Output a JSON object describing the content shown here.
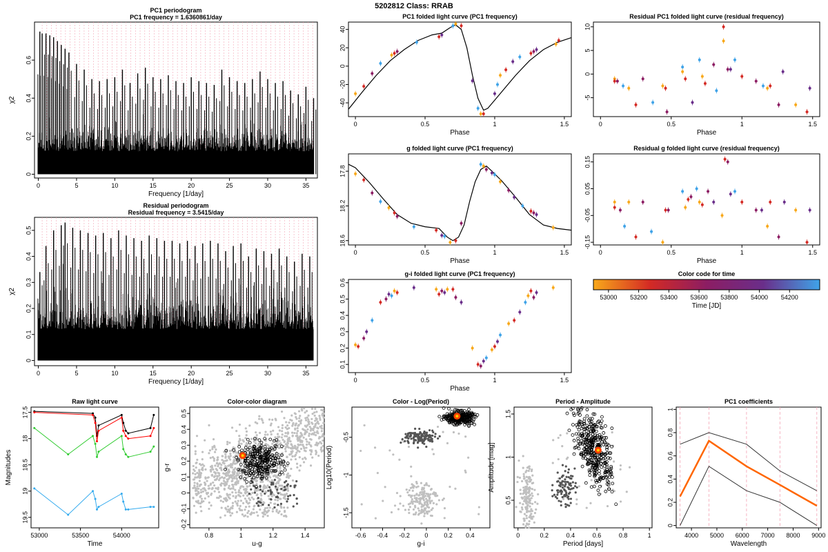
{
  "page_title": "5202812    Class: RRAB",
  "chart_data": [
    {
      "id": "pc1-periodogram",
      "type": "line",
      "title": "PC1 periodogram",
      "subtitle": "PC1 frequency = 1.6360861/day",
      "xlabel": "Frequency [1/day]",
      "ylabel": "χ2",
      "xlim": [
        -0.5,
        36.5
      ],
      "ylim": [
        -0.02,
        0.8
      ],
      "xticks": [
        0,
        5,
        10,
        15,
        20,
        25,
        30,
        35
      ],
      "yticks": [
        0.0,
        0.2,
        0.4,
        0.6
      ],
      "series": [
        {
          "name": "peaks",
          "x": [
            0.2,
            0.5,
            1.0,
            1.5,
            2.0,
            2.5,
            3.0,
            3.5,
            4.0,
            5.0,
            6.0,
            7.0,
            8.0,
            9.0,
            10.0,
            11.0,
            12.0,
            13.0,
            14.0,
            15.0,
            16.0,
            17.0,
            18.0,
            19.0,
            20.0,
            21.0,
            22.0,
            23.0,
            24.0,
            25.0,
            26.0,
            27.0,
            28.0,
            29.0,
            30.0,
            31.0,
            32.0,
            33.0,
            34.0,
            35.0,
            36.0
          ],
          "values": [
            0.75,
            0.74,
            0.74,
            0.73,
            0.72,
            0.7,
            0.68,
            0.66,
            0.64,
            0.58,
            0.55,
            0.5,
            0.49,
            0.5,
            0.51,
            0.55,
            0.48,
            0.53,
            0.56,
            0.51,
            0.5,
            0.52,
            0.49,
            0.48,
            0.51,
            0.49,
            0.48,
            0.47,
            0.55,
            0.51,
            0.49,
            0.48,
            0.5,
            0.54,
            0.5,
            0.48,
            0.49,
            0.44,
            0.42,
            0.46,
            0.4
          ]
        }
      ]
    },
    {
      "id": "residual-periodogram",
      "type": "line",
      "title": "Residual periodogram",
      "subtitle": "Residual frequency = 3.5415/day",
      "xlabel": "Frequency [1/day]",
      "ylabel": "χ2",
      "xlim": [
        -0.5,
        36.5
      ],
      "ylim": [
        -0.02,
        0.55
      ],
      "xticks": [
        0,
        5,
        10,
        15,
        20,
        25,
        30,
        35
      ],
      "yticks": [
        0.0,
        0.1,
        0.2,
        0.3,
        0.4,
        0.5
      ],
      "series": [
        {
          "name": "peaks",
          "x": [
            0.2,
            1.0,
            2.0,
            3.0,
            3.5,
            4.5,
            5.5,
            6.5,
            7.5,
            8.5,
            9.5,
            10.5,
            11.5,
            12.5,
            13.5,
            14.5,
            15.5,
            16.5,
            17.5,
            18.5,
            19.5,
            20.5,
            21.5,
            22.5,
            23.5,
            24.5,
            25.5,
            26.5,
            27.5,
            28.5,
            29.5,
            30.5,
            31.5,
            32.5,
            33.5,
            34.5,
            35.5
          ],
          "values": [
            0.34,
            0.44,
            0.5,
            0.52,
            0.53,
            0.51,
            0.5,
            0.49,
            0.48,
            0.49,
            0.47,
            0.5,
            0.48,
            0.47,
            0.46,
            0.48,
            0.47,
            0.46,
            0.46,
            0.45,
            0.46,
            0.44,
            0.45,
            0.46,
            0.45,
            0.42,
            0.44,
            0.45,
            0.4,
            0.43,
            0.42,
            0.41,
            0.43,
            0.4,
            0.38,
            0.41,
            0.4
          ]
        }
      ]
    },
    {
      "id": "pc1-folded",
      "type": "scatter",
      "title": "PC1 folded light curve (PC1 frequency)",
      "xlabel": "Phase",
      "ylabel": "",
      "xlim": [
        -0.05,
        1.55
      ],
      "ylim": [
        -55,
        48
      ],
      "xticks": [
        0.0,
        0.5,
        1.0,
        1.5
      ],
      "yticks": [
        -40,
        -20,
        0,
        20,
        40
      ],
      "curve": {
        "x": [
          -0.05,
          0.05,
          0.15,
          0.25,
          0.35,
          0.45,
          0.55,
          0.62,
          0.68,
          0.72,
          0.76,
          0.8,
          0.84,
          0.88,
          0.92,
          0.95,
          1.0,
          1.05,
          1.15,
          1.25,
          1.35,
          1.45,
          1.55
        ],
        "y": [
          -47,
          -28,
          -10,
          6,
          18,
          28,
          34,
          36,
          42,
          45,
          40,
          20,
          -10,
          -35,
          -48,
          -46,
          -37,
          -28,
          -10,
          6,
          18,
          26,
          31
        ]
      },
      "points": {
        "x": [
          0.0,
          0.06,
          0.12,
          0.18,
          0.26,
          0.28,
          0.3,
          0.44,
          0.6,
          0.62,
          0.7,
          0.72,
          0.76,
          0.84,
          0.88,
          0.9,
          0.92,
          1.0,
          1.02,
          1.04,
          1.08,
          1.13,
          1.18,
          1.26,
          1.28,
          1.3,
          1.44,
          1.46
        ],
        "y": [
          -30,
          -22,
          -8,
          3,
          12,
          14,
          16,
          26,
          32,
          34,
          44,
          46,
          44,
          -16,
          -46,
          -52,
          -52,
          -30,
          -20,
          -10,
          -4,
          5,
          10,
          14,
          16,
          18,
          24,
          28
        ]
      }
    },
    {
      "id": "residual-pc1-folded",
      "type": "scatter",
      "title": "Residual PC1 folded light curve (residual frequency)",
      "xlabel": "Phase",
      "ylabel": "",
      "xlim": [
        -0.05,
        1.55
      ],
      "ylim": [
        -9,
        11
      ],
      "xticks": [
        0.0,
        0.5,
        1.0,
        1.5
      ],
      "yticks": [
        -5,
        0,
        5,
        10
      ],
      "points": {
        "x": [
          0.1,
          0.1,
          0.12,
          0.16,
          0.2,
          0.25,
          0.3,
          0.37,
          0.44,
          0.46,
          0.47,
          0.58,
          0.58,
          0.6,
          0.65,
          0.7,
          0.72,
          0.74,
          0.8,
          0.82,
          0.87,
          0.87,
          0.9,
          0.92,
          0.95,
          1.0,
          1.1,
          1.15,
          1.18,
          1.2,
          1.26,
          1.29,
          1.38,
          1.46,
          1.48
        ],
        "y": [
          -1,
          -1.5,
          -1.5,
          -2.5,
          -3,
          -6.5,
          -1,
          -6,
          -2.5,
          -3,
          -8,
          1.5,
          0.5,
          -1,
          -6,
          3,
          -0.5,
          -2,
          2,
          -3.5,
          7,
          10,
          1,
          1,
          3,
          -0.5,
          -1.5,
          -2.5,
          -3,
          -2.5,
          -6.5,
          0.5,
          -6.5,
          -8,
          -3
        ]
      }
    },
    {
      "id": "g-folded",
      "type": "scatter",
      "title": "g folded light curve (PC1 frequency)",
      "xlabel": "Phase",
      "ylabel": "",
      "xlim": [
        -0.05,
        1.55
      ],
      "ylim": [
        18.65,
        17.6
      ],
      "xticks": [
        0.0,
        0.5,
        1.0,
        1.5
      ],
      "yticks": [
        17.8,
        18.2,
        18.6
      ],
      "curve": {
        "x": [
          -0.05,
          0.0,
          0.1,
          0.2,
          0.3,
          0.4,
          0.5,
          0.6,
          0.66,
          0.7,
          0.74,
          0.78,
          0.82,
          0.86,
          0.9,
          0.94,
          0.98,
          1.05,
          1.15,
          1.25,
          1.35,
          1.45,
          1.55
        ],
        "y": [
          17.72,
          17.76,
          17.93,
          18.12,
          18.3,
          18.4,
          18.44,
          18.46,
          18.56,
          18.6,
          18.56,
          18.42,
          18.15,
          17.92,
          17.78,
          17.74,
          17.8,
          17.91,
          18.1,
          18.3,
          18.42,
          18.46,
          18.48
        ]
      },
      "points": {
        "x": [
          0.0,
          0.06,
          0.12,
          0.18,
          0.24,
          0.28,
          0.3,
          0.42,
          0.58,
          0.62,
          0.64,
          0.68,
          0.72,
          0.76,
          0.9,
          0.92,
          0.94,
          0.98,
          1.0,
          1.04,
          1.1,
          1.14,
          1.2,
          1.26,
          1.28,
          1.3,
          1.42
        ],
        "y": [
          17.83,
          17.9,
          18.05,
          18.15,
          18.22,
          18.28,
          18.32,
          18.44,
          18.48,
          18.54,
          18.55,
          18.62,
          18.6,
          18.4,
          17.72,
          17.74,
          17.78,
          17.82,
          17.84,
          17.92,
          18.02,
          18.1,
          18.2,
          18.26,
          18.28,
          18.3,
          18.45
        ]
      }
    },
    {
      "id": "residual-g-folded",
      "type": "scatter",
      "title": "Residual g folded light curve (residual frequency)",
      "xlabel": "Phase",
      "ylabel": "",
      "xlim": [
        -0.05,
        1.55
      ],
      "ylim": [
        -0.16,
        0.18
      ],
      "xticks": [
        0.0,
        0.5,
        1.0,
        1.5
      ],
      "yticks": [
        -0.15,
        -0.05,
        0.05,
        0.15
      ],
      "points": {
        "x": [
          0.1,
          0.1,
          0.14,
          0.17,
          0.2,
          0.25,
          0.3,
          0.36,
          0.44,
          0.46,
          0.48,
          0.58,
          0.6,
          0.62,
          0.64,
          0.68,
          0.7,
          0.72,
          0.76,
          0.8,
          0.86,
          0.88,
          0.9,
          0.92,
          0.95,
          1.0,
          1.1,
          1.14,
          1.18,
          1.2,
          1.26,
          1.3,
          1.38,
          1.46,
          1.48
        ],
        "y": [
          0.0,
          -0.02,
          -0.03,
          -0.09,
          0.0,
          -0.13,
          0.0,
          -0.11,
          -0.15,
          -0.03,
          -0.03,
          0.04,
          -0.02,
          0.01,
          0.02,
          0.05,
          0.0,
          -0.01,
          0.04,
          0.0,
          -0.05,
          0.16,
          0.15,
          0.03,
          0.04,
          0.0,
          -0.03,
          -0.03,
          -0.09,
          0.0,
          -0.13,
          0.0,
          -0.03,
          -0.15,
          -0.03
        ]
      }
    },
    {
      "id": "gi-folded",
      "type": "scatter",
      "title": "g-i folded light curve (PC1 frequency)",
      "xlabel": "Phase",
      "ylabel": "",
      "xlim": [
        -0.05,
        1.55
      ],
      "ylim": [
        0.05,
        0.62
      ],
      "xticks": [
        0.0,
        0.5,
        1.0,
        1.5
      ],
      "yticks": [
        0.1,
        0.2,
        0.3,
        0.4,
        0.5,
        0.6
      ],
      "points": {
        "x": [
          0.0,
          0.02,
          0.06,
          0.08,
          0.12,
          0.18,
          0.22,
          0.24,
          0.26,
          0.28,
          0.3,
          0.42,
          0.58,
          0.6,
          0.62,
          0.64,
          0.66,
          0.7,
          0.72,
          0.76,
          0.84,
          0.88,
          0.9,
          0.92,
          0.94,
          0.98,
          1.0,
          1.02,
          1.04,
          1.1,
          1.14,
          1.18,
          1.22,
          1.24,
          1.26,
          1.28,
          1.3,
          1.42
        ],
        "y": [
          0.22,
          0.21,
          0.26,
          0.3,
          0.37,
          0.48,
          0.5,
          0.53,
          0.52,
          0.55,
          0.54,
          0.57,
          0.56,
          0.53,
          0.55,
          0.54,
          0.56,
          0.56,
          0.51,
          0.48,
          0.2,
          0.1,
          0.09,
          0.12,
          0.14,
          0.19,
          0.21,
          0.24,
          0.28,
          0.35,
          0.37,
          0.42,
          0.48,
          0.52,
          0.55,
          0.51,
          0.54,
          0.57
        ]
      }
    },
    {
      "id": "color-code",
      "type": "heatmap",
      "title": "Color code for time",
      "xlabel": "Time [JD]",
      "xlim": [
        52900,
        54400
      ],
      "xticks": [
        53000,
        53200,
        53400,
        53600,
        53800,
        54000,
        54200
      ],
      "colors": [
        "#f8a81a",
        "#d42a24",
        "#8c1d63",
        "#6a2e8a",
        "#3fa3e8"
      ]
    },
    {
      "id": "raw-light-curve",
      "type": "line",
      "title": "Raw light curve",
      "xlabel": "Time",
      "ylabel": "Magnitudes",
      "xlim": [
        52900,
        54450
      ],
      "ylim": [
        19.7,
        17.4
      ],
      "xticks": [
        53000,
        53500,
        54000
      ],
      "yticks": [
        17.5,
        18.0,
        18.5,
        19.0,
        19.5
      ],
      "series": [
        {
          "name": "u",
          "color": "#000000",
          "x": [
            52940,
            53650,
            53680,
            53700,
            53720,
            54000,
            54020,
            54050,
            54080,
            54350,
            54390
          ],
          "values": [
            17.48,
            17.52,
            17.6,
            17.95,
            17.75,
            17.55,
            17.7,
            17.85,
            17.9,
            17.8,
            17.55
          ]
        },
        {
          "name": "g",
          "color": "#ff0000",
          "x": [
            52940,
            53650,
            53680,
            53700,
            53720,
            54000,
            54020,
            54050,
            54080,
            54350,
            54390
          ],
          "values": [
            17.5,
            17.55,
            17.7,
            18.05,
            17.85,
            17.6,
            17.85,
            17.95,
            18.0,
            17.95,
            17.8
          ]
        },
        {
          "name": "r",
          "color": "#33cc33",
          "x": [
            52940,
            53350,
            53650,
            53680,
            53700,
            53720,
            54000,
            54020,
            54050,
            54080,
            54350,
            54390
          ],
          "values": [
            17.8,
            18.3,
            17.95,
            18.1,
            18.35,
            18.25,
            17.95,
            18.2,
            18.3,
            18.35,
            18.25,
            18.15
          ]
        },
        {
          "name": "i",
          "color": "#33aaee",
          "x": [
            52940,
            53350,
            53650,
            53680,
            53700,
            53720,
            54000,
            54020,
            54050,
            54080,
            54350,
            54390
          ],
          "values": [
            18.95,
            19.45,
            19.0,
            19.15,
            19.35,
            19.3,
            19.05,
            19.2,
            19.35,
            19.35,
            19.3,
            19.3
          ]
        }
      ]
    },
    {
      "id": "color-color",
      "type": "scatter",
      "title": "Color-color diagram",
      "xlabel": "u-g",
      "ylabel": "g-r",
      "xlim": [
        0.68,
        1.52
      ],
      "ylim": [
        -0.22,
        0.54
      ],
      "xticks": [
        0.8,
        1.0,
        1.2,
        1.4
      ],
      "yticks": [
        -0.2,
        -0.1,
        0.0,
        0.1,
        0.2,
        0.3,
        0.4,
        0.5
      ],
      "highlight": [
        1.01,
        0.235
      ]
    },
    {
      "id": "color-log-period",
      "type": "scatter",
      "title": "Color - Log(Period)",
      "xlabel": "g-i",
      "ylabel": "Log10(Period)",
      "xlim": [
        -0.68,
        0.58
      ],
      "ylim": [
        -1.7,
        -0.1
      ],
      "xticks": [
        -0.6,
        -0.4,
        -0.2,
        0.0,
        0.2,
        0.4
      ],
      "yticks": [
        -1.5,
        -1.0,
        -0.5
      ],
      "highlight": [
        0.28,
        -0.22
      ]
    },
    {
      "id": "period-amplitude",
      "type": "scatter",
      "title": "Period - Amplitude",
      "xlabel": "Period [days]",
      "ylabel": "Amplitude [mag]",
      "xlim": [
        -0.03,
        1.02
      ],
      "ylim": [
        0.18,
        1.58
      ],
      "xticks": [
        0.0,
        0.2,
        0.4,
        0.6,
        0.8,
        1.0
      ],
      "yticks": [
        0.5,
        1.0,
        1.5
      ],
      "highlight": [
        0.61,
        1.08
      ]
    },
    {
      "id": "pc1-coefficients",
      "type": "line",
      "title": "PC1 coefficients",
      "xlabel": "Wavelength",
      "ylabel": "",
      "xlim": [
        3400,
        9100
      ],
      "ylim": [
        -0.02,
        1.02
      ],
      "xticks": [
        4000,
        5000,
        6000,
        7000,
        8000,
        9000
      ],
      "yticks": [
        0.0,
        0.2,
        0.4,
        0.6,
        0.8,
        1.0
      ],
      "x": [
        3551,
        4686,
        6166,
        7480,
        8932
      ],
      "series": [
        {
          "name": "upper",
          "color": "#333333",
          "values": [
            0.7,
            0.8,
            0.7,
            0.47,
            0.3
          ]
        },
        {
          "name": "PC1",
          "color": "#ff6600",
          "values": [
            0.25,
            0.73,
            0.51,
            0.35,
            0.17
          ]
        },
        {
          "name": "lower",
          "color": "#333333",
          "values": [
            0.0,
            0.51,
            0.3,
            0.2,
            0.0
          ]
        }
      ]
    }
  ]
}
